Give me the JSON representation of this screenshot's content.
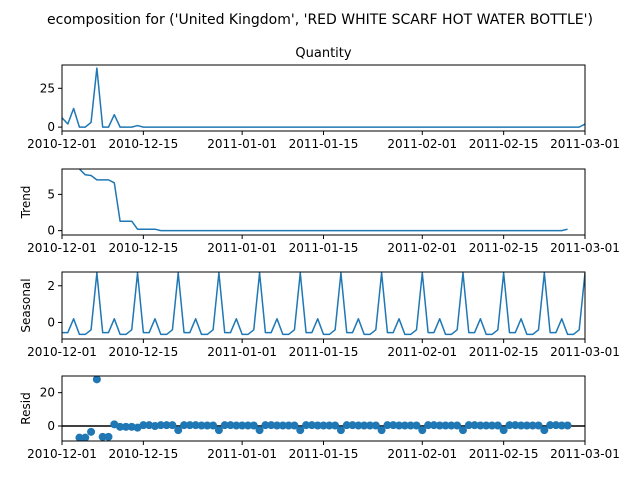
{
  "figure_title": "ecomposition for ('United Kingdom', 'RED WHITE SCARF  HOT WATER BOTTLE')",
  "chart_data": [
    {
      "type": "line",
      "title": "Quantity",
      "ylabel": "",
      "x_start": "2010-12-01",
      "x_end": "2011-03-01",
      "xticks": [
        "2010-12-01",
        "2010-12-15",
        "2011-01-01",
        "2011-01-15",
        "2011-02-01",
        "2011-02-15",
        "2011-03-01"
      ],
      "xtick_labels": [
        "2010-12-01",
        "2010-12-15",
        "2011-01-01",
        "2011-01-15",
        "2011-02-01",
        "2011-02-15",
        "2011-03-01"
      ],
      "yticks": [
        0,
        25
      ],
      "ylim": [
        -2.5,
        40
      ],
      "color": "#1f77b4",
      "series": [
        {
          "values": [
            [
              "2010-12-01",
              6
            ],
            [
              "2010-12-02",
              2
            ],
            [
              "2010-12-03",
              12
            ],
            [
              "2010-12-04",
              0
            ],
            [
              "2010-12-05",
              0
            ],
            [
              "2010-12-06",
              3
            ],
            [
              "2010-12-07",
              38
            ],
            [
              "2010-12-08",
              0
            ],
            [
              "2010-12-09",
              0
            ],
            [
              "2010-12-10",
              8
            ],
            [
              "2010-12-11",
              0
            ],
            [
              "2010-12-12",
              0
            ],
            [
              "2010-12-13",
              0
            ],
            [
              "2010-12-14",
              1
            ],
            [
              "2010-12-15",
              0
            ],
            [
              "2011-02-28",
              0
            ],
            [
              "2011-03-01",
              2
            ]
          ]
        }
      ]
    },
    {
      "type": "line",
      "title": "",
      "ylabel": "Trend",
      "x_start": "2010-12-01",
      "x_end": "2011-03-01",
      "xticks": [
        "2010-12-01",
        "2010-12-15",
        "2011-01-01",
        "2011-01-15",
        "2011-02-01",
        "2011-02-15",
        "2011-03-01"
      ],
      "xtick_labels": [
        "2010-12-01",
        "2010-12-15",
        "2011-01-01",
        "2011-01-15",
        "2011-02-01",
        "2011-02-15",
        "2011-03-01"
      ],
      "yticks": [
        0,
        5
      ],
      "ylim": [
        -0.6,
        8.5
      ],
      "color": "#1f77b4",
      "series": [
        {
          "values": [
            [
              "2010-12-04",
              8.5
            ],
            [
              "2010-12-05",
              7.7
            ],
            [
              "2010-12-06",
              7.6
            ],
            [
              "2010-12-07",
              7.0
            ],
            [
              "2010-12-08",
              7.0
            ],
            [
              "2010-12-09",
              7.0
            ],
            [
              "2010-12-10",
              6.6
            ],
            [
              "2010-12-11",
              1.3
            ],
            [
              "2010-12-12",
              1.3
            ],
            [
              "2010-12-13",
              1.3
            ],
            [
              "2010-12-14",
              0.2
            ],
            [
              "2010-12-15",
              0.2
            ],
            [
              "2010-12-16",
              0.2
            ],
            [
              "2010-12-17",
              0.2
            ],
            [
              "2010-12-18",
              0.0
            ],
            [
              "2011-02-25",
              0.0
            ],
            [
              "2011-02-26",
              0.2
            ]
          ]
        }
      ]
    },
    {
      "type": "line",
      "title": "",
      "ylabel": "Seasonal",
      "x_start": "2010-12-01",
      "x_end": "2011-03-01",
      "xticks": [
        "2010-12-01",
        "2010-12-15",
        "2011-01-01",
        "2011-01-15",
        "2011-02-01",
        "2011-02-15",
        "2011-03-01"
      ],
      "xtick_labels": [
        "2010-12-01",
        "2010-12-15",
        "2011-01-01",
        "2011-01-15",
        "2011-02-01",
        "2011-02-15",
        "2011-03-01"
      ],
      "yticks": [
        0,
        2
      ],
      "ylim": [
        -0.9,
        2.75
      ],
      "color": "#1f77b4",
      "period": 7,
      "cycle_start": "2010-12-01",
      "cycle_values": [
        -0.55,
        -0.55,
        0.2,
        -0.65,
        -0.65,
        -0.4,
        2.7
      ]
    },
    {
      "type": "scatter",
      "title": "",
      "ylabel": "Resid",
      "x_start": "2010-12-01",
      "x_end": "2011-03-01",
      "xticks": [
        "2010-12-01",
        "2010-12-15",
        "2011-01-01",
        "2011-01-15",
        "2011-02-01",
        "2011-02-15",
        "2011-03-01"
      ],
      "xtick_labels": [
        "2010-12-01",
        "2010-12-15",
        "2011-01-01",
        "2011-01-15",
        "2011-02-01",
        "2011-02-15",
        "2011-03-01"
      ],
      "yticks": [
        0,
        20
      ],
      "ylim": [
        -9,
        30
      ],
      "baseline": 0,
      "color": "#1f77b4",
      "values": [
        [
          "2010-12-04",
          -7
        ],
        [
          "2010-12-05",
          -7
        ],
        [
          "2010-12-06",
          -3.5
        ],
        [
          "2010-12-07",
          28
        ],
        [
          "2010-12-08",
          -6.5
        ],
        [
          "2010-12-09",
          -6.5
        ],
        [
          "2010-12-10",
          1
        ],
        [
          "2010-12-11",
          -0.5
        ],
        [
          "2010-12-12",
          -0.5
        ],
        [
          "2010-12-13",
          -0.5
        ],
        [
          "2010-12-14",
          -1
        ],
        [
          "2010-12-15",
          0.5
        ],
        [
          "2010-12-16",
          0.5
        ],
        [
          "2010-12-17",
          0
        ],
        [
          "2010-12-18",
          0.5
        ],
        [
          "2010-12-19",
          0.5
        ],
        [
          "2010-12-20",
          0.5
        ],
        [
          "2010-12-21",
          -2.5
        ],
        [
          "2010-12-22",
          0.5
        ],
        [
          "2010-12-23",
          0.5
        ],
        [
          "2010-12-24",
          0.5
        ],
        [
          "2010-12-25",
          0.3
        ],
        [
          "2010-12-26",
          0.3
        ],
        [
          "2010-12-27",
          0.3
        ],
        [
          "2010-12-28",
          -2.5
        ],
        [
          "2010-12-29",
          0.5
        ],
        [
          "2010-12-30",
          0.5
        ],
        [
          "2010-12-31",
          0.3
        ],
        [
          "2011-01-01",
          0.3
        ],
        [
          "2011-01-02",
          0.3
        ],
        [
          "2011-01-03",
          0.3
        ],
        [
          "2011-01-04",
          -2.5
        ],
        [
          "2011-01-05",
          0.5
        ],
        [
          "2011-01-06",
          0.5
        ],
        [
          "2011-01-07",
          0.3
        ],
        [
          "2011-01-08",
          0.3
        ],
        [
          "2011-01-09",
          0.3
        ],
        [
          "2011-01-10",
          0.3
        ],
        [
          "2011-01-11",
          -2.5
        ],
        [
          "2011-01-12",
          0.5
        ],
        [
          "2011-01-13",
          0.5
        ],
        [
          "2011-01-14",
          0.3
        ],
        [
          "2011-01-15",
          0.3
        ],
        [
          "2011-01-16",
          0.3
        ],
        [
          "2011-01-17",
          0.3
        ],
        [
          "2011-01-18",
          -2.5
        ],
        [
          "2011-01-19",
          0.5
        ],
        [
          "2011-01-20",
          0.5
        ],
        [
          "2011-01-21",
          0.3
        ],
        [
          "2011-01-22",
          0.3
        ],
        [
          "2011-01-23",
          0.3
        ],
        [
          "2011-01-24",
          0.3
        ],
        [
          "2011-01-25",
          -2.5
        ],
        [
          "2011-01-26",
          0.5
        ],
        [
          "2011-01-27",
          0.5
        ],
        [
          "2011-01-28",
          0.3
        ],
        [
          "2011-01-29",
          0.3
        ],
        [
          "2011-01-30",
          0.3
        ],
        [
          "2011-01-31",
          0.3
        ],
        [
          "2011-02-01",
          -2.5
        ],
        [
          "2011-02-02",
          0.5
        ],
        [
          "2011-02-03",
          0.5
        ],
        [
          "2011-02-04",
          0.3
        ],
        [
          "2011-02-05",
          0.3
        ],
        [
          "2011-02-06",
          0.3
        ],
        [
          "2011-02-07",
          0.3
        ],
        [
          "2011-02-08",
          -2.5
        ],
        [
          "2011-02-09",
          0.5
        ],
        [
          "2011-02-10",
          0.5
        ],
        [
          "2011-02-11",
          0.3
        ],
        [
          "2011-02-12",
          0.3
        ],
        [
          "2011-02-13",
          0.3
        ],
        [
          "2011-02-14",
          0.3
        ],
        [
          "2011-02-15",
          -2.5
        ],
        [
          "2011-02-16",
          0.5
        ],
        [
          "2011-02-17",
          0.5
        ],
        [
          "2011-02-18",
          0.3
        ],
        [
          "2011-02-19",
          0.3
        ],
        [
          "2011-02-20",
          0.3
        ],
        [
          "2011-02-21",
          0.3
        ],
        [
          "2011-02-22",
          -2.5
        ],
        [
          "2011-02-23",
          0.5
        ],
        [
          "2011-02-24",
          0.5
        ],
        [
          "2011-02-25",
          0.3
        ],
        [
          "2011-02-26",
          0.3
        ]
      ]
    }
  ]
}
